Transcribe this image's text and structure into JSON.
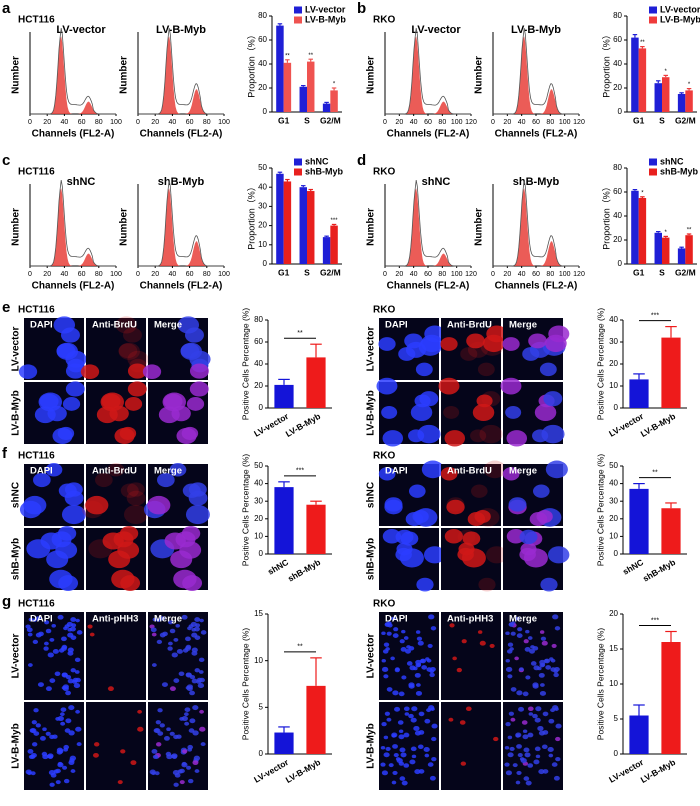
{
  "panels": [
    {
      "letter": "a",
      "cell_line": "HCT116",
      "histograms": [
        "LV-vector",
        "LV-B-Myb"
      ],
      "ylabel": "Number",
      "xlabel": "Channels (FL2-A)",
      "xlim": [
        0,
        100
      ],
      "xticks": [
        0,
        20,
        40,
        60,
        80,
        100
      ]
    },
    {
      "letter": "b",
      "cell_line": "RKO",
      "histograms": [
        "LV-vector",
        "LV-B-Myb"
      ],
      "ylabel": "Number",
      "xlabel": "Channels (FL2-A)",
      "xlim": [
        0,
        120
      ],
      "xticks": [
        0,
        20,
        40,
        60,
        80,
        100,
        120
      ]
    },
    {
      "letter": "c",
      "cell_line": "HCT116",
      "histograms": [
        "shNC",
        "shB-Myb"
      ],
      "ylabel": "Number",
      "xlabel": "Channels (FL2-A)",
      "xlim": [
        0,
        100
      ],
      "xticks": [
        0,
        20,
        40,
        60,
        80,
        100
      ]
    },
    {
      "letter": "d",
      "cell_line": "RKO",
      "histograms": [
        "shNC",
        "shB-Myb"
      ],
      "ylabel": "Number",
      "xlabel": "Channels (FL2-A)",
      "xlim": [
        0,
        120
      ],
      "xticks": [
        0,
        20,
        40,
        60,
        80,
        100,
        120
      ]
    }
  ],
  "imaging": [
    {
      "letter": "e",
      "blocks": [
        {
          "cell_line": "HCT116",
          "channels": [
            "DAPI",
            "Anti-BrdU",
            "Merge"
          ],
          "rows": [
            "LV-vector",
            "LV-B-Myb"
          ]
        },
        {
          "cell_line": "RKO",
          "channels": [
            "DAPI",
            "Anti-BrdU",
            "Merge"
          ],
          "rows": [
            "LV-vector",
            "LV-B-Myb"
          ]
        }
      ]
    },
    {
      "letter": "f",
      "blocks": [
        {
          "cell_line": "HCT116",
          "channels": [
            "DAPI",
            "Anti-BrdU",
            "Merge"
          ],
          "rows": [
            "shNC",
            "shB-Myb"
          ]
        },
        {
          "cell_line": "RKO",
          "channels": [
            "DAPI",
            "Anti-BrdU",
            "Merge"
          ],
          "rows": [
            "shNC",
            "shB-Myb"
          ]
        }
      ]
    },
    {
      "letter": "g",
      "blocks": [
        {
          "cell_line": "HCT116",
          "channels": [
            "DAPI",
            "Anti-pHH3",
            "Merge"
          ],
          "rows": [
            "LV-vector",
            "LV-B-Myb"
          ]
        },
        {
          "cell_line": "RKO",
          "channels": [
            "DAPI",
            "Anti-pHH3",
            "Merge"
          ],
          "rows": [
            "LV-vector",
            "LV-B-Myb"
          ]
        }
      ]
    }
  ],
  "chart_data": [
    {
      "type": "bar",
      "ylabel": "Proportion（%）",
      "categories": [
        "G1",
        "S",
        "G2/M"
      ],
      "legend": "upper right",
      "series": [
        {
          "name": "LV-vector",
          "color": "#1f1fd6",
          "values": [
            72,
            21,
            7
          ],
          "errors": [
            1.5,
            1,
            1
          ]
        },
        {
          "name": "LV-B-Myb",
          "color": "#ef5350",
          "values": [
            41,
            42,
            18
          ],
          "errors": [
            2.5,
            2,
            2
          ]
        }
      ],
      "stars": [
        "**",
        "**",
        "*"
      ],
      "ylim": [
        0,
        80
      ],
      "yticks": [
        0,
        20,
        40,
        60,
        80
      ]
    },
    {
      "type": "bar",
      "ylabel": "Proportion（%）",
      "categories": [
        "G1",
        "S",
        "G2/M"
      ],
      "legend": "upper right",
      "series": [
        {
          "name": "LV-vector",
          "color": "#1f1fd6",
          "values": [
            62,
            24,
            15
          ],
          "errors": [
            2.5,
            2,
            1
          ]
        },
        {
          "name": "LV-B-Myb",
          "color": "#ef3b3b",
          "values": [
            53,
            29,
            18
          ],
          "errors": [
            1.5,
            1.5,
            1.5
          ]
        }
      ],
      "stars": [
        "**",
        "*",
        "*"
      ],
      "ylim": [
        0,
        80
      ],
      "yticks": [
        0,
        20,
        40,
        60,
        80
      ]
    },
    {
      "type": "bar",
      "ylabel": "Proportion（%）",
      "categories": [
        "G1",
        "S",
        "G2/M"
      ],
      "legend": "upper right",
      "series": [
        {
          "name": "shNC",
          "color": "#1f1fd6",
          "values": [
            47,
            40,
            14
          ],
          "errors": [
            0.8,
            0.8,
            0.5
          ]
        },
        {
          "name": "shB-Myb",
          "color": "#e8201e",
          "values": [
            43,
            38,
            20
          ],
          "errors": [
            1,
            0.8,
            0.6
          ]
        }
      ],
      "stars": [
        null,
        null,
        "***"
      ],
      "ylim": [
        0,
        50
      ],
      "yticks": [
        0,
        10,
        20,
        30,
        40,
        50
      ]
    },
    {
      "type": "bar",
      "ylabel": "Proportion（%）",
      "categories": [
        "G1",
        "S",
        "G2/M"
      ],
      "legend": "upper right",
      "series": [
        {
          "name": "shNC",
          "color": "#1f1fd6",
          "values": [
            61,
            26,
            13
          ],
          "errors": [
            1,
            1,
            1
          ]
        },
        {
          "name": "shB-Myb",
          "color": "#e8201e",
          "values": [
            55,
            22,
            24
          ],
          "errors": [
            1,
            1,
            1
          ]
        }
      ],
      "stars": [
        "*",
        "*",
        "**"
      ],
      "ylim": [
        0,
        80
      ],
      "yticks": [
        0,
        20,
        40,
        60,
        80
      ]
    },
    {
      "type": "bar",
      "ylabel": "Positive Cells Percentage (%)",
      "categories": [
        "LV-vector",
        "LV-B-Myb"
      ],
      "series": [
        {
          "colors": [
            "#1414d8",
            "#ee1b1b"
          ],
          "values": [
            21,
            46
          ],
          "errors": [
            5,
            12
          ]
        }
      ],
      "significance": "**",
      "ylim": [
        0,
        80
      ],
      "yticks": [
        0,
        20,
        40,
        60,
        80
      ]
    },
    {
      "type": "bar",
      "ylabel": "Positive Cells Percentage (%)",
      "categories": [
        "LV-vector",
        "LV-B-Myb"
      ],
      "series": [
        {
          "colors": [
            "#1414d8",
            "#ee1b1b"
          ],
          "values": [
            13,
            32
          ],
          "errors": [
            2.5,
            5
          ]
        }
      ],
      "significance": "***",
      "ylim": [
        0,
        40
      ],
      "yticks": [
        0,
        10,
        20,
        30,
        40
      ]
    },
    {
      "type": "bar",
      "ylabel": "Positive Cells Percentage (%)",
      "categories": [
        "shNC",
        "shB-Myb"
      ],
      "series": [
        {
          "colors": [
            "#1414d8",
            "#ee1b1b"
          ],
          "values": [
            38,
            28
          ],
          "errors": [
            3,
            2
          ]
        }
      ],
      "significance": "***",
      "ylim": [
        0,
        50
      ],
      "yticks": [
        0,
        10,
        20,
        30,
        40,
        50
      ]
    },
    {
      "type": "bar",
      "ylabel": "Positive Cells Percentage (%)",
      "categories": [
        "shNC",
        "shB-Myb"
      ],
      "series": [
        {
          "colors": [
            "#1414d8",
            "#ee1b1b"
          ],
          "values": [
            37,
            26
          ],
          "errors": [
            3,
            3
          ]
        }
      ],
      "significance": "**",
      "ylim": [
        0,
        50
      ],
      "yticks": [
        0,
        10,
        20,
        30,
        40,
        50
      ]
    },
    {
      "type": "bar",
      "ylabel": "Positive Cells Percentage (%)",
      "categories": [
        "LV-vector",
        "LV-B-Myb"
      ],
      "series": [
        {
          "colors": [
            "#1414d8",
            "#ee1b1b"
          ],
          "values": [
            2.3,
            7.3
          ],
          "errors": [
            0.6,
            3
          ]
        }
      ],
      "significance": "**",
      "ylim": [
        0,
        15
      ],
      "yticks": [
        0,
        5,
        10,
        15
      ]
    },
    {
      "type": "bar",
      "ylabel": "Positive Cells Percentage (%)",
      "categories": [
        "LV-vector",
        "LV-B-Myb"
      ],
      "series": [
        {
          "colors": [
            "#1414d8",
            "#ee1b1b"
          ],
          "values": [
            5.5,
            16
          ],
          "errors": [
            1.5,
            1.5
          ]
        }
      ],
      "significance": "***",
      "ylim": [
        0,
        20
      ],
      "yticks": [
        0,
        5,
        10,
        15,
        20
      ]
    }
  ]
}
